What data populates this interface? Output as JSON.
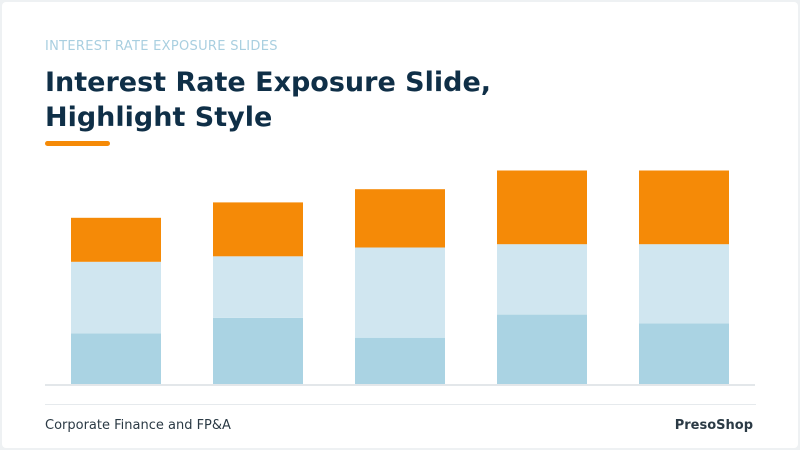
{
  "header": {
    "eyebrow": "INTEREST RATE EXPOSURE SLIDES",
    "title": "Interest Rate Exposure Slide, Highlight Style"
  },
  "footer": {
    "left_text": "Corporate Finance and FP&A",
    "brand": "PresoShop"
  },
  "colors": {
    "accent": "#f58a07",
    "title": "#0f2f47",
    "eyebrow": "#a9cfe0",
    "series_bottom": "#aad3e3",
    "series_middle": "#d0e6f0",
    "series_top": "#f58a07",
    "baseline": "#e3e7ea"
  },
  "chart_data": {
    "type": "bar",
    "stacked": true,
    "categories": [
      "",
      "",
      "",
      "",
      ""
    ],
    "series": [
      {
        "values": [
          47,
          61,
          43,
          64,
          56
        ]
      },
      {
        "values": [
          65,
          56,
          82,
          64,
          72
        ]
      },
      {
        "values": [
          40,
          49,
          53,
          67,
          67
        ]
      }
    ],
    "ylim": [
      0,
      200
    ],
    "grid": false,
    "legend": "none",
    "title": "",
    "xlabel": "",
    "ylabel": ""
  }
}
